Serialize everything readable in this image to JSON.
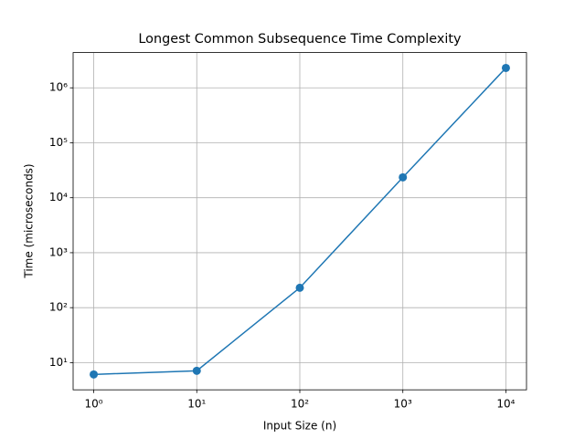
{
  "chart_data": {
    "type": "line",
    "title": "Longest Common Subsequence Time Complexity",
    "xlabel": "Input Size (n)",
    "ylabel": "Time (microseconds)",
    "x": [
      1,
      10,
      100,
      1000,
      10000
    ],
    "values": [
      6.1,
      7.1,
      230,
      23500,
      2300000
    ],
    "color": "#1f77b4",
    "xscale": "log",
    "yscale": "log",
    "xlim": [
      0.631,
      15849
    ],
    "ylim": [
      3.2,
      4380000
    ],
    "xticks": [
      {
        "value": 1,
        "label": "10⁰"
      },
      {
        "value": 10,
        "label": "10¹"
      },
      {
        "value": 100,
        "label": "10²"
      },
      {
        "value": 1000,
        "label": "10³"
      },
      {
        "value": 10000,
        "label": "10⁴"
      }
    ],
    "yticks": [
      {
        "value": 10,
        "label": "10¹"
      },
      {
        "value": 100,
        "label": "10²"
      },
      {
        "value": 1000,
        "label": "10³"
      },
      {
        "value": 10000,
        "label": "10⁴"
      },
      {
        "value": 100000,
        "label": "10⁵"
      },
      {
        "value": 1000000,
        "label": "10⁶"
      }
    ],
    "grid": true
  }
}
